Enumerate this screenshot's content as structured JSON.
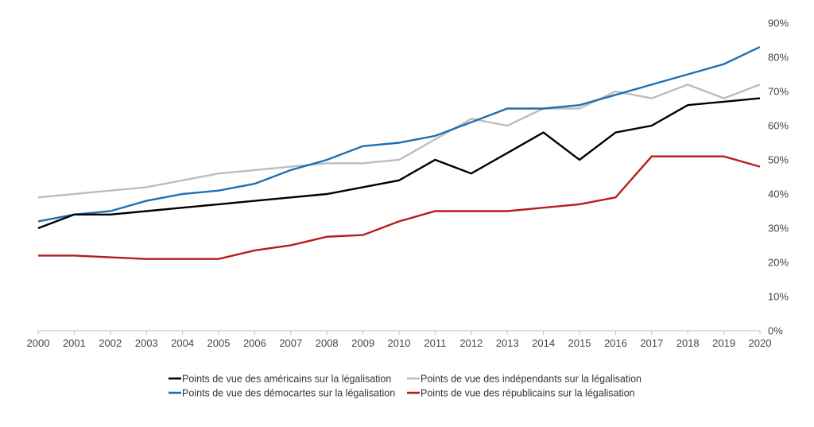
{
  "chart_data": {
    "type": "line",
    "title": "",
    "xlabel": "",
    "ylabel": "",
    "x": [
      2000,
      2001,
      2002,
      2003,
      2004,
      2005,
      2006,
      2007,
      2008,
      2009,
      2010,
      2011,
      2012,
      2013,
      2014,
      2015,
      2016,
      2017,
      2018,
      2019,
      2020
    ],
    "x_tick_labels": [
      "2000",
      "2001",
      "2002",
      "2003",
      "2004",
      "2005",
      "2006",
      "2007",
      "2008",
      "2009",
      "2010",
      "2011",
      "2012",
      "2013",
      "2014",
      "2015",
      "2016",
      "2017",
      "2018",
      "2019",
      "2020"
    ],
    "ylim": [
      0,
      90
    ],
    "y_ticks": [
      0,
      10,
      20,
      30,
      40,
      50,
      60,
      70,
      80,
      90
    ],
    "y_tick_labels": [
      "0%",
      "10%",
      "20%",
      "30%",
      "40%",
      "50%",
      "60%",
      "70%",
      "80%",
      "90%"
    ],
    "y_axis_side": "right",
    "grid": false,
    "legend_position": "bottom",
    "series": [
      {
        "name": "Points de vue des américains sur la légalisation",
        "color": "#000000",
        "values": [
          30,
          34,
          34,
          35,
          36,
          37,
          38,
          39,
          40,
          42,
          44,
          50,
          46,
          52,
          58,
          50,
          58,
          60,
          66,
          67,
          68
        ]
      },
      {
        "name": "Points de vue des indépendants sur la légalisation",
        "color": "#bdbdbd",
        "values": [
          39,
          40,
          41,
          42,
          44,
          46,
          47,
          48,
          49,
          49,
          50,
          56,
          62,
          60,
          65,
          65,
          70,
          68,
          72,
          68,
          72
        ]
      },
      {
        "name": "Points de vue des démocartes sur la légalisation",
        "color": "#1f6fb5",
        "values": [
          32,
          34,
          35,
          38,
          40,
          41,
          43,
          47,
          50,
          54,
          55,
          57,
          61,
          65,
          65,
          66,
          69,
          72,
          75,
          78,
          83
        ]
      },
      {
        "name": "Points de vue des républicains sur la légalisation",
        "color": "#b71c1c",
        "values": [
          22,
          22,
          21.5,
          21,
          21,
          21,
          23.5,
          25,
          27.5,
          28,
          32,
          35,
          35,
          35,
          36,
          37,
          39,
          51,
          51,
          51,
          48
        ]
      }
    ]
  }
}
